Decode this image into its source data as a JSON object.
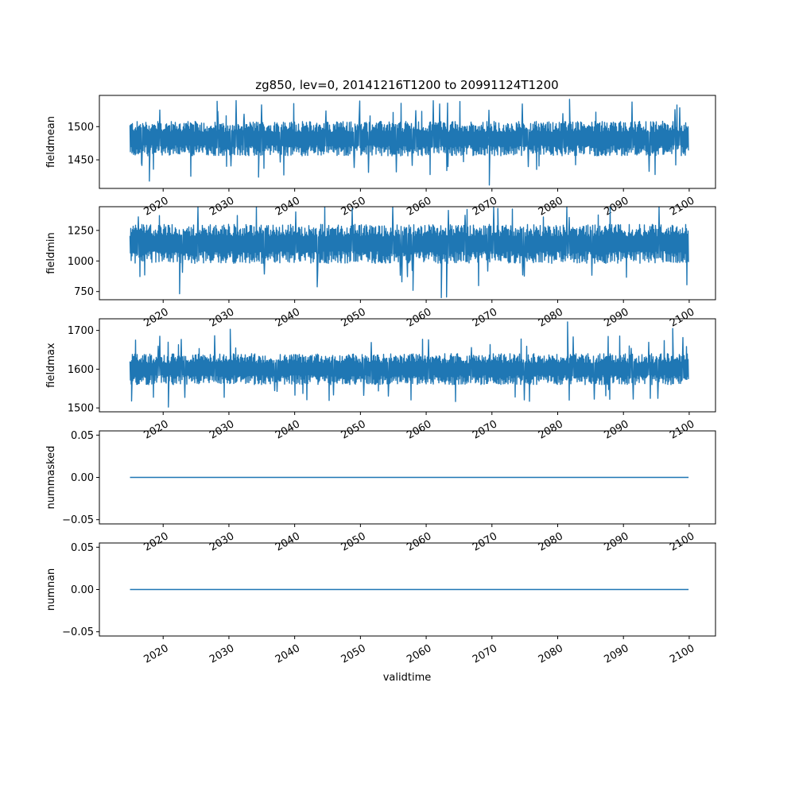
{
  "title": "zg850, lev=0, 20141216T1200 to 20991124T1200",
  "xlabel": "validtime",
  "series_color": "#1f77b4",
  "chart_data": [
    {
      "type": "line",
      "ylabel": "fieldmean",
      "xlim": [
        2010.3,
        2104.0
      ],
      "x_range": [
        2014.96,
        2099.9
      ],
      "ylim": [
        1407,
        1547
      ],
      "yticks": [
        1450,
        1500
      ],
      "band": [
        1456,
        1508
      ],
      "extremes": [
        [
          2069.6,
          1412
        ],
        [
          2081.8,
          1541
        ],
        [
          2017.9,
          1418
        ],
        [
          2028.2,
          1538
        ],
        [
          2034.5,
          1424
        ]
      ],
      "xticks": [
        2020,
        2030,
        2040,
        2050,
        2060,
        2070,
        2080,
        2090,
        2100
      ],
      "xtick_labels": [
        "2020",
        "2030",
        "2040",
        "2050",
        "2060",
        "2070",
        "2080",
        "2090",
        "2100"
      ]
    },
    {
      "type": "line",
      "ylabel": "fieldmin",
      "xlim": [
        2010.3,
        2104.0
      ],
      "x_range": [
        2014.96,
        2099.9
      ],
      "ylim": [
        683,
        1444
      ],
      "yticks": [
        750,
        1000,
        1250
      ],
      "band": [
        980,
        1300
      ],
      "extremes": [
        [
          2062.3,
          700
        ],
        [
          2063.1,
          705
        ],
        [
          2022.5,
          732
        ],
        [
          2070.9,
          1430
        ],
        [
          2058.0,
          760
        ]
      ],
      "xticks": [
        2020,
        2030,
        2040,
        2050,
        2060,
        2070,
        2080,
        2090,
        2100
      ],
      "xtick_labels": [
        "2020",
        "2030",
        "2040",
        "2050",
        "2060",
        "2070",
        "2080",
        "2090",
        "2100"
      ]
    },
    {
      "type": "line",
      "ylabel": "fieldmax",
      "xlim": [
        2010.3,
        2104.0
      ],
      "x_range": [
        2014.96,
        2099.9
      ],
      "ylim": [
        1490,
        1730
      ],
      "yticks": [
        1500,
        1600,
        1700
      ],
      "band": [
        1560,
        1640
      ],
      "extremes": [
        [
          2081.5,
          1722
        ],
        [
          2020.8,
          1502
        ],
        [
          2015.2,
          1518
        ],
        [
          2030.2,
          1703
        ],
        [
          2097.5,
          1705
        ]
      ],
      "xticks": [
        2020,
        2030,
        2040,
        2050,
        2060,
        2070,
        2080,
        2090,
        2100
      ],
      "xtick_labels": [
        "2020",
        "2030",
        "2040",
        "2050",
        "2060",
        "2070",
        "2080",
        "2090",
        "2100"
      ]
    },
    {
      "type": "line",
      "ylabel": "nummasked",
      "xlim": [
        2010.3,
        2104.0
      ],
      "x_range": [
        2014.96,
        2099.9
      ],
      "ylim": [
        -0.055,
        0.055
      ],
      "yticks": [
        -0.05,
        0.0,
        0.05
      ],
      "ytick_labels": [
        "−0.05",
        "0.00",
        "0.05"
      ],
      "constant": 0.0,
      "xticks": [
        2020,
        2030,
        2040,
        2050,
        2060,
        2070,
        2080,
        2090,
        2100
      ],
      "xtick_labels": [
        "2020",
        "2030",
        "2040",
        "2050",
        "2060",
        "2070",
        "2080",
        "2090",
        "2100"
      ]
    },
    {
      "type": "line",
      "ylabel": "numnan",
      "xlim": [
        2010.3,
        2104.0
      ],
      "x_range": [
        2014.96,
        2099.9
      ],
      "ylim": [
        -0.055,
        0.055
      ],
      "yticks": [
        -0.05,
        0.0,
        0.05
      ],
      "ytick_labels": [
        "−0.05",
        "0.00",
        "0.05"
      ],
      "constant": 0.0,
      "xticks": [
        2020,
        2030,
        2040,
        2050,
        2060,
        2070,
        2080,
        2090,
        2100
      ],
      "xtick_labels": [
        "2020",
        "2030",
        "2040",
        "2050",
        "2060",
        "2070",
        "2080",
        "2090",
        "2100"
      ]
    }
  ]
}
